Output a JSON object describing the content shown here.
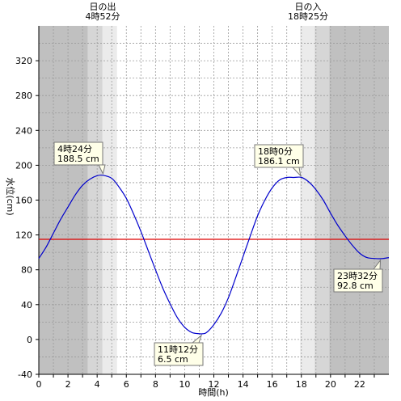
{
  "chart_data": {
    "type": "line",
    "xlabel": "時間(h)",
    "ylabel": "水位(cm)",
    "xlim": [
      0,
      24
    ],
    "ylim": [
      -40,
      360
    ],
    "x_ticks": [
      0,
      2,
      4,
      6,
      8,
      10,
      12,
      14,
      16,
      18,
      20,
      22
    ],
    "y_ticks": [
      -40,
      0,
      40,
      80,
      120,
      160,
      200,
      240,
      280,
      320
    ],
    "grid": true,
    "sunrise": {
      "title": "日の出",
      "time_label": "4時52分",
      "time_h": 4.867
    },
    "sunset": {
      "title": "日の入",
      "time_label": "18時25分",
      "time_h": 18.417
    },
    "reference_line": {
      "y": 115,
      "color": "#dd0000"
    },
    "series": [
      {
        "color": "#0000cc",
        "x": [
          0,
          0.5,
          1,
          1.5,
          2,
          2.5,
          3,
          3.5,
          4,
          4.4,
          5,
          5.5,
          6,
          6.5,
          7,
          7.5,
          8,
          8.5,
          9,
          9.5,
          10,
          10.5,
          11,
          11.2,
          11.5,
          12,
          12.5,
          13,
          13.5,
          14,
          14.5,
          15,
          15.5,
          16,
          16.5,
          17,
          17.5,
          18,
          18.5,
          19,
          19.5,
          20,
          20.5,
          21,
          21.5,
          22,
          22.5,
          23,
          23.53,
          24
        ],
        "y": [
          93,
          106,
          122,
          138,
          152,
          166,
          177,
          184,
          188,
          188.5,
          185,
          175,
          162,
          144,
          124,
          102,
          80,
          59,
          41,
          25,
          14,
          8,
          6.6,
          6.5,
          8,
          17,
          30,
          48,
          71,
          95,
          119,
          142,
          160,
          174,
          183,
          186,
          186,
          186.1,
          181,
          172,
          160,
          145,
          131,
          119,
          108,
          99,
          94,
          93,
          92.8,
          94
        ]
      }
    ],
    "annotations": [
      {
        "time": "4時24分",
        "value": "188.5 cm",
        "x": 4.4,
        "y": 188.5
      },
      {
        "time": "11時12分",
        "value": "6.5 cm",
        "x": 11.2,
        "y": 6.5
      },
      {
        "time": "18時0分",
        "value": "186.1 cm",
        "x": 18.0,
        "y": 186.1
      },
      {
        "time": "23時32分",
        "value": "92.8 cm",
        "x": 23.53,
        "y": 92.8
      }
    ]
  }
}
